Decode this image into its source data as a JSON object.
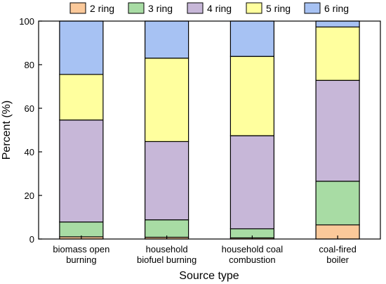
{
  "chart_data": {
    "type": "bar",
    "stacked": true,
    "xlabel": "Source type",
    "ylabel": "Percent (%)",
    "ylim": [
      0,
      100
    ],
    "yticks": [
      0,
      20,
      40,
      60,
      80,
      100
    ],
    "grid": false,
    "legend_position": "top",
    "categories": [
      [
        "biomass open",
        "burning"
      ],
      [
        "household",
        "biofuel burning"
      ],
      [
        "household coal",
        "combustion"
      ],
      [
        "coal-fired",
        "boiler"
      ]
    ],
    "series": [
      {
        "name": "2 ring",
        "color": "#fbc99a",
        "values": [
          1.0,
          0.8,
          0.5,
          6.5
        ]
      },
      {
        "name": "3 ring",
        "color": "#a8dca4",
        "values": [
          6.8,
          8.0,
          4.2,
          20.0
        ]
      },
      {
        "name": "4 ring",
        "color": "#c7b7d8",
        "values": [
          46.8,
          35.9,
          42.7,
          46.3
        ]
      },
      {
        "name": "5 ring",
        "color": "#ffff9e",
        "values": [
          20.9,
          38.3,
          36.4,
          24.5
        ]
      },
      {
        "name": "6 ring",
        "color": "#a7c2f3",
        "values": [
          24.5,
          17.0,
          16.2,
          2.7
        ]
      }
    ]
  }
}
